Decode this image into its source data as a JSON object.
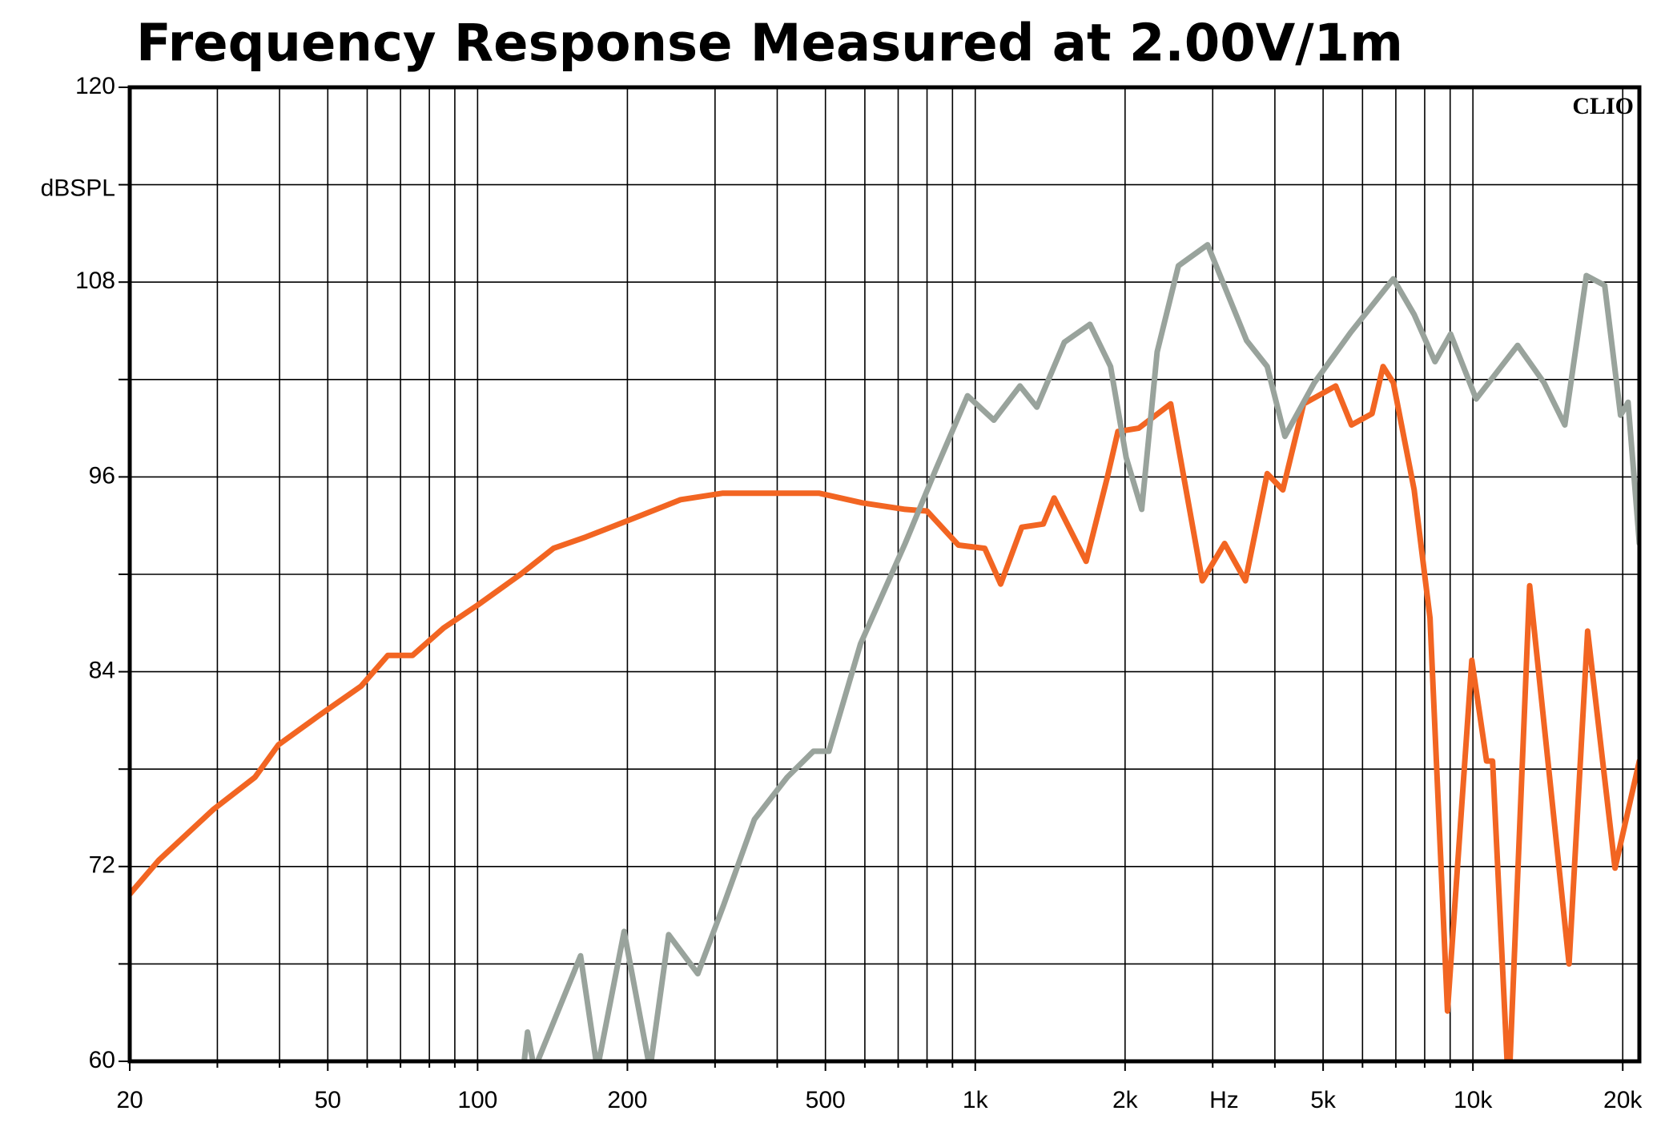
{
  "chart_data": {
    "type": "line",
    "title": "Frequency Response Measured at 2.00V/1m",
    "brand": "CLIO",
    "ylabel": "dBSPL",
    "xlabel": "Hz",
    "xscale": "log",
    "xlim": [
      20,
      21600
    ],
    "ylim": [
      60,
      120
    ],
    "xticks": [
      20,
      50,
      100,
      200,
      500,
      {
        "value": 1000,
        "label": "1k"
      },
      {
        "value": 2000,
        "label": "2k"
      },
      {
        "value": 5000,
        "label": "5k"
      },
      {
        "value": 10000,
        "label": "10k"
      },
      {
        "value": 20000,
        "label": "20k"
      }
    ],
    "xminor": [
      30,
      40,
      60,
      70,
      80,
      90,
      300,
      400,
      600,
      700,
      800,
      900,
      3000,
      4000,
      6000,
      7000,
      8000,
      9000
    ],
    "yticks": [
      60,
      72,
      84,
      96,
      108,
      120
    ],
    "yminor": [
      66,
      78,
      90,
      102,
      114
    ],
    "grid": true,
    "series": [
      {
        "color": "#f26522",
        "x": [
          20,
          22.9,
          29.4,
          35.7,
          39.8,
          48,
          58.3,
          66,
          74,
          85.5,
          100,
          122,
          142,
          165,
          212,
          256,
          311,
          378,
          485,
          593,
          723,
          800,
          925,
          1045,
          1125,
          1240,
          1370,
          1440,
          1670,
          1840,
          1935,
          2130,
          2470,
          2860,
          3170,
          3490,
          3860,
          4150,
          4570,
          5300,
          5700,
          6270,
          6600,
          6920,
          7620,
          8200,
          8890,
          9950,
          10650,
          10950,
          11800,
          13000,
          15600,
          17000,
          19300,
          21600
        ],
        "values": [
          70.3,
          72.4,
          75.5,
          77.5,
          79.5,
          81.3,
          83.1,
          85.0,
          85.0,
          86.7,
          88.1,
          90.0,
          91.6,
          92.3,
          93.6,
          94.6,
          95.0,
          95.0,
          95.0,
          94.4,
          94.0,
          93.9,
          91.8,
          91.6,
          89.4,
          92.9,
          93.1,
          94.7,
          90.8,
          95.9,
          98.8,
          99.0,
          100.5,
          89.6,
          91.9,
          89.6,
          96.2,
          95.2,
          100.5,
          101.6,
          99.2,
          99.9,
          102.8,
          101.8,
          95.2,
          87.3,
          63.1,
          84.7,
          78.5,
          78.5,
          58,
          89.3,
          66.0,
          86.5,
          71.9,
          78.5
        ]
      },
      {
        "color": "#99a39c",
        "x": [
          123,
          126,
          130,
          161,
          174,
          197,
          222,
          242,
          277,
          312,
          360,
          419,
          473,
          508,
          588,
          723,
          834,
          965,
          1090,
          1230,
          1330,
          1510,
          1700,
          1870,
          2010,
          2160,
          2320,
          2560,
          2930,
          3510,
          3860,
          4190,
          4800,
          5680,
          6920,
          7620,
          8390,
          9020,
          10150,
          12300,
          13900,
          15300,
          16900,
          18400,
          19800,
          20500,
          21600
        ],
        "values": [
          59,
          61.8,
          59.5,
          66.5,
          59.5,
          68.0,
          59.5,
          67.8,
          65.4,
          69.6,
          74.9,
          77.5,
          79.1,
          79.1,
          85.7,
          91.9,
          96.5,
          101.0,
          99.5,
          101.6,
          100.3,
          104.3,
          105.4,
          102.8,
          97.2,
          94.0,
          103.7,
          109.0,
          110.3,
          104.4,
          102.8,
          98.5,
          101.8,
          104.9,
          108.2,
          106.0,
          103.1,
          104.8,
          100.8,
          104.1,
          101.8,
          99.2,
          108.4,
          107.8,
          99.8,
          100.6,
          91.9
        ]
      }
    ]
  }
}
